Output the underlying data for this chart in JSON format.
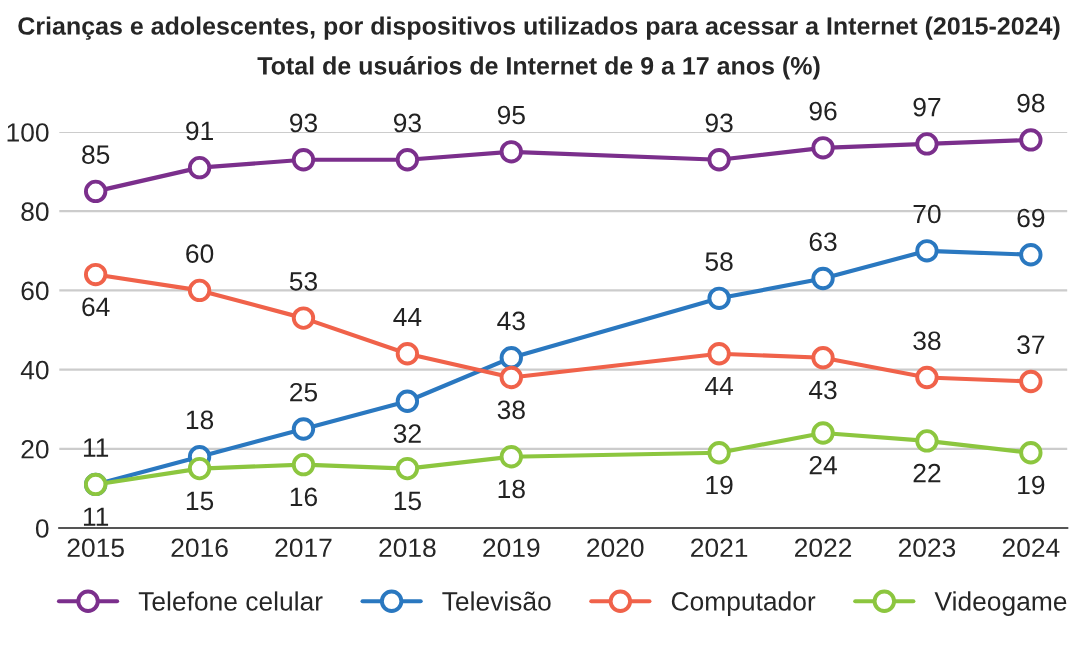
{
  "chart_data": {
    "type": "line",
    "title": "Crianças e adolescentes, por dispositivos utilizados para acessar a Internet (2015-2024)",
    "subtitle": "Total de usuários de Internet de 9 a 17 anos (%)",
    "categories": [
      "2015",
      "2016",
      "2017",
      "2018",
      "2019",
      "2020",
      "2021",
      "2022",
      "2023",
      "2024"
    ],
    "series": [
      {
        "name": "Telefone celular",
        "color": "#7b2f8c",
        "values": [
          85,
          91,
          93,
          93,
          95,
          null,
          93,
          96,
          97,
          98
        ]
      },
      {
        "name": "Televisão",
        "color": "#2a78c0",
        "values": [
          11,
          18,
          25,
          32,
          43,
          null,
          58,
          63,
          70,
          69
        ]
      },
      {
        "name": "Computador",
        "color": "#f0624a",
        "values": [
          64,
          60,
          53,
          44,
          38,
          null,
          44,
          43,
          38,
          37
        ]
      },
      {
        "name": "Videogame",
        "color": "#8cc63f",
        "values": [
          11,
          15,
          16,
          15,
          18,
          null,
          19,
          24,
          22,
          19
        ]
      }
    ],
    "ylim": [
      0,
      100
    ],
    "yticks": [
      0,
      20,
      40,
      60,
      80,
      100
    ],
    "grid": "y",
    "legend": "bottom",
    "marker": "circle",
    "line_style": "solid",
    "data_labels": true
  }
}
